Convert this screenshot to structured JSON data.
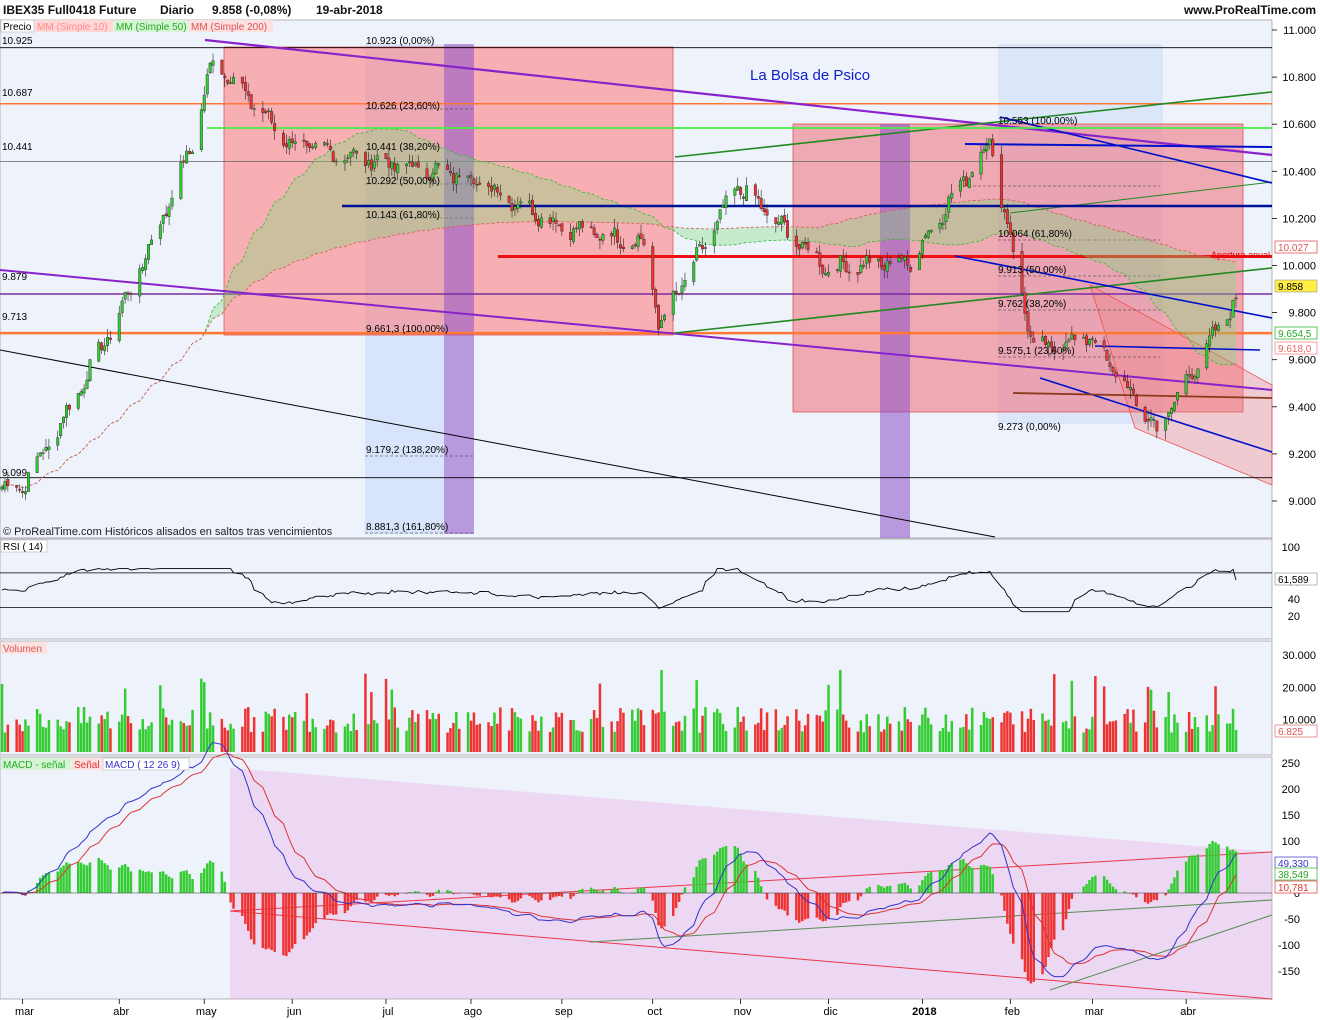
{
  "header": {
    "symbol": "IBEX35 Full0418 Future",
    "period": "Diario",
    "last": "9.858 (-0,08%)",
    "date": "19-abr-2018",
    "site": "www.ProRealTime.com"
  },
  "price_panel": {
    "legend": [
      "Precio",
      "MM (Simple 10)",
      "MM (Simple 50)",
      "MM (Simple 200)"
    ],
    "watermark": "La Bolsa de Psico",
    "footer_note": "© ProRealTime.com  Históricos alisados en saltos tras vencimientos",
    "left_levels": [
      "10.925",
      "10.687",
      "10.441",
      "9.879",
      "9.713",
      "9.099"
    ],
    "fib_labels_left": [
      "10.923 (0,00%)",
      "10.626 (23,60%)",
      "10.441 (38,20%)",
      "10.292 (50,00%)",
      "10.143 (61,80%)",
      "9.661,3 (100,00%)",
      "9.179,2 (138,20%)",
      "8.881,3 (161,80%)"
    ],
    "fib_labels_right": [
      "10.553 (100,00%)",
      "10.064 (61,80%)",
      "9.913 (50,00%)",
      "9.762 (38,20%)",
      "9.575,1 (23,60%)",
      "9.273 (0,00%)"
    ],
    "annotation": "Apertura anual",
    "right_badges": {
      "last": "9.858",
      "ma200": "10.027",
      "ma50": "9.654,5",
      "ma10": "9.618,0"
    }
  },
  "rsi_panel": {
    "title": "RSI ( 14)",
    "value_badge": "61,589"
  },
  "volume_panel": {
    "title": "Volumen",
    "value_badge": "6.825"
  },
  "macd_panel": {
    "legend": [
      "MACD - señal",
      "Señal",
      "MACD ( 12 26 9)"
    ],
    "badges": [
      "49,330",
      "38,549",
      "10,781"
    ]
  },
  "colors": {
    "up": "#33cc33",
    "down": "#ee3333",
    "macd": "#3333cc",
    "signal": "#dd3333",
    "background": "#eef2fb"
  },
  "chart_data": [
    {
      "type": "candlestick",
      "title": "IBEX35 Full0418 Future",
      "ylim": [
        8880,
        11000
      ],
      "y_ticks": [
        "9.000",
        "9.200",
        "9.400",
        "9.600",
        "9.800",
        "10.000",
        "10.200",
        "10.400",
        "10.600",
        "10.800",
        "11.000"
      ],
      "x_ticks": [
        "mar",
        "abr",
        "may",
        "jun",
        "jul",
        "ago",
        "sep",
        "oct",
        "nov",
        "dic",
        "2018",
        "feb",
        "mar",
        "abr"
      ],
      "approx_close_path": [
        {
          "x": "2017-03-01",
          "y": 9060
        },
        {
          "x": "2017-03-15",
          "y": 9350
        },
        {
          "x": "2017-03-31",
          "y": 9720
        },
        {
          "x": "2017-04-15",
          "y": 10120
        },
        {
          "x": "2017-04-28",
          "y": 10520
        },
        {
          "x": "2017-05-05",
          "y": 10880
        },
        {
          "x": "2017-05-31",
          "y": 10520
        },
        {
          "x": "2017-06-30",
          "y": 10440
        },
        {
          "x": "2017-07-31",
          "y": 10380
        },
        {
          "x": "2017-08-31",
          "y": 10170
        },
        {
          "x": "2017-09-30",
          "y": 10090
        },
        {
          "x": "2017-10-04",
          "y": 9740
        },
        {
          "x": "2017-10-31",
          "y": 10340
        },
        {
          "x": "2017-11-30",
          "y": 9990
        },
        {
          "x": "2017-12-29",
          "y": 10020
        },
        {
          "x": "2018-01-25",
          "y": 10530
        },
        {
          "x": "2018-02-09",
          "y": 9640
        },
        {
          "x": "2018-02-28",
          "y": 9700
        },
        {
          "x": "2018-03-23",
          "y": 9300
        },
        {
          "x": "2018-04-19",
          "y": 9858
        }
      ],
      "horizontal_levels": [
        10925,
        10687,
        10441,
        9879,
        9713,
        9099
      ],
      "annual_open": 10038,
      "last": 9858
    },
    {
      "type": "line",
      "title": "RSI ( 14)",
      "ylim": [
        10,
        100
      ],
      "y_ticks": [
        "20",
        "40",
        "60",
        "100"
      ],
      "reference_levels": [
        30,
        70
      ],
      "last": 61.589
    },
    {
      "type": "bar",
      "title": "Volumen",
      "ylim": [
        0,
        32000
      ],
      "y_ticks": [
        "10.000",
        "20.000",
        "30.000"
      ],
      "last": 6825
    },
    {
      "type": "line",
      "title": "MACD ( 12 26 9)",
      "ylim": [
        -195,
        260
      ],
      "y_ticks": [
        "-150",
        "-100",
        "-50",
        "0",
        "50",
        "100",
        "150",
        "200",
        "250"
      ],
      "series": [
        {
          "name": "MACD ( 12 26 9)",
          "last": 49.33
        },
        {
          "name": "Señal",
          "last": 38.549
        },
        {
          "name": "MACD - señal",
          "last": 10.781
        }
      ]
    }
  ]
}
